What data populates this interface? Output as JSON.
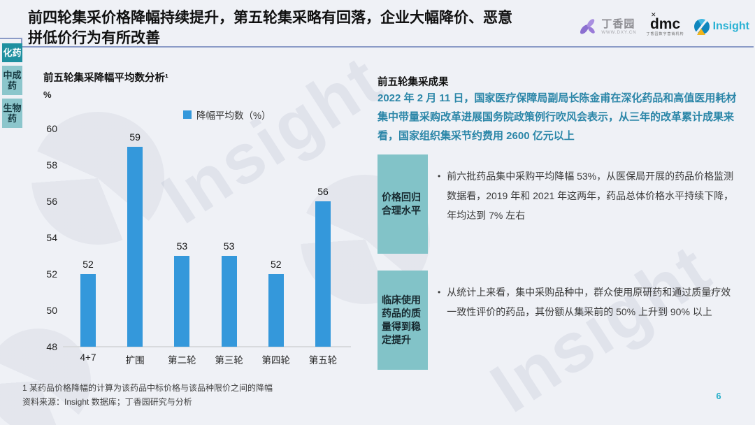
{
  "slide": {
    "title_line1": "前四轮集采价格降幅持续提升，第五轮集采略有回落，企业大幅降价、恶意",
    "title_line2": "拼低价行为有所改善",
    "page_number": "6"
  },
  "logos": {
    "dxy": {
      "name": "丁香园",
      "url": "WWW.DXY.CN"
    },
    "dmc": {
      "name": "dmc",
      "x_mark": "✕",
      "tagline": "丁香园数字营销机构"
    },
    "insight": {
      "name": "Insight"
    }
  },
  "sidebar": {
    "tabs": [
      {
        "label": "化药",
        "active": true
      },
      {
        "label": "中成药",
        "active": false
      },
      {
        "label": "生物药",
        "active": false
      }
    ]
  },
  "chart_data": {
    "type": "bar",
    "title": "前五轮集采降幅平均数分析¹",
    "unit_label": "%",
    "legend": "降幅平均数（%）",
    "categories": [
      "4+7",
      "扩围",
      "第二轮",
      "第三轮",
      "第四轮",
      "第五轮"
    ],
    "values": [
      52,
      59,
      53,
      53,
      52,
      56
    ],
    "ylim": [
      48,
      60
    ],
    "ytick_step": 2,
    "grid": false,
    "legend_position": "top-right",
    "bar_color": "#3498db"
  },
  "results": {
    "heading": "前五轮集采成果",
    "intro": "2022 年 2 月 11 日，国家医疗保障局副局长陈金甫在深化药品和高值医用耗材集中带量采购改革进展国务院政策例行吹风会表示，从三年的改革累计成果来看，国家组织集采节约费用 2600 亿元以上",
    "blocks": [
      {
        "label": "价格回归合理水平",
        "bullet": "前六批药品集中采购平均降幅 53%，从医保局开展的药品价格监测数据看，2019 年和 2021 年这两年，药品总体价格水平持续下降，年均达到 7% 左右"
      },
      {
        "label": "临床使用药品的质量得到稳定提升",
        "bullet": "从统计上来看，集中采购品种中，群众使用原研药和通过质量疗效一致性评价的药品，其份额从集采前的 50% 上升到 90% 以上"
      }
    ]
  },
  "footer": {
    "note": "1 某药品价格降幅的计算为该药品中标价格与该品种限价之间的降幅",
    "source": "资料来源：Insight 数据库；丁香园研究与分析"
  },
  "watermark": {
    "text": "Insight"
  },
  "colors": {
    "background": "#eff1f6",
    "bar_blue": "#3498db",
    "teal_dark": "#1e90a0",
    "teal_light": "#82c3c8",
    "intro_text": "#2b86a8",
    "header_line": "#8b9bc7",
    "insight_brand": "#29b2d4",
    "dxy_purple": "#8b6fd0",
    "page_number": "#25aec9"
  }
}
